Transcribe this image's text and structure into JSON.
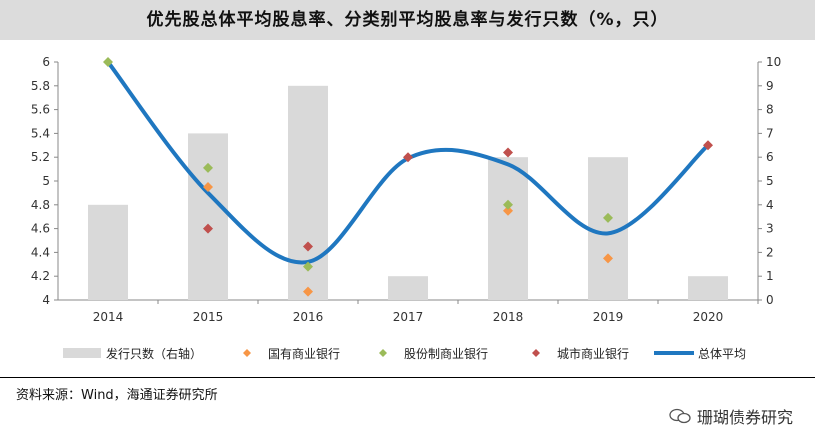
{
  "title": "优先股总体平均股息率、分类别平均股息率与发行只数（%，只）",
  "source": {
    "label": "资料来源：",
    "text": "Wind，海通证券研究所"
  },
  "watermark": "珊瑚债券研究",
  "chart_data": {
    "type": "bar",
    "categories": [
      "2014",
      "2015",
      "2016",
      "2017",
      "2018",
      "2019",
      "2020"
    ],
    "y_left": {
      "range": [
        4,
        6
      ],
      "ticks": [
        "4",
        "4.2",
        "4.4",
        "4.6",
        "4.8",
        "5",
        "5.2",
        "5.4",
        "5.6",
        "5.8",
        "6"
      ]
    },
    "y_right": {
      "range": [
        0,
        10
      ],
      "ticks": [
        "0",
        "1",
        "2",
        "3",
        "4",
        "5",
        "6",
        "7",
        "8",
        "9",
        "10"
      ]
    },
    "bars": {
      "name": "发行只数（右轴）",
      "axis": "right",
      "color": "#d9d9d9",
      "values": [
        4,
        7,
        9,
        1,
        6,
        6,
        1
      ]
    },
    "scatter_series": [
      {
        "name": "国有商业银行",
        "color": "#f79646",
        "values": [
          null,
          4.95,
          4.07,
          null,
          4.75,
          4.35,
          null
        ]
      },
      {
        "name": "股份制商业银行",
        "color": "#9bbb59",
        "values": [
          6.0,
          5.11,
          4.28,
          null,
          4.8,
          4.69,
          null
        ]
      },
      {
        "name": "城市商业银行",
        "color": "#c0504d",
        "values": [
          null,
          4.6,
          4.45,
          5.2,
          5.24,
          null,
          5.3
        ]
      }
    ],
    "line": {
      "name": "总体平均",
      "color": "#1f77c0",
      "values": [
        6.0,
        4.9,
        4.32,
        5.19,
        5.14,
        4.56,
        5.3
      ],
      "smooth": true
    },
    "grid": false,
    "legend_position": "bottom"
  }
}
